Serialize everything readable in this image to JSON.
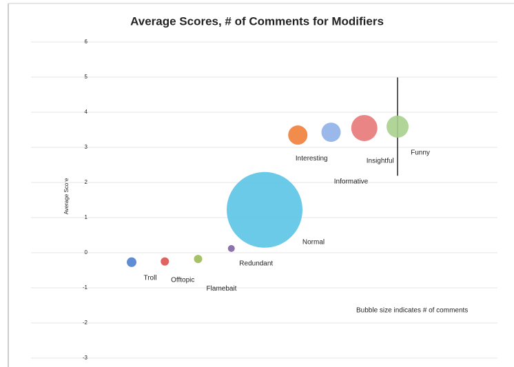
{
  "chart_data": {
    "type": "bubble",
    "title": "Average Scores, # of Comments for Modifiers",
    "y_label": "Average Score",
    "annotation": "Bubble size indicates # of comments",
    "categories": [
      "Troll",
      "Offtopic",
      "Flamebait",
      "Redundant",
      "Normal",
      "Interesting",
      "Informative",
      "Insightful",
      "Funny"
    ],
    "values": [
      -0.27,
      -0.25,
      -0.18,
      0.12,
      1.22,
      3.35,
      3.43,
      3.55,
      3.59
    ],
    "sizes": [
      49,
      36,
      36,
      25,
      3025,
      196,
      196,
      361,
      256
    ],
    "errors": [
      null,
      null,
      null,
      null,
      null,
      null,
      null,
      null,
      1.4
    ],
    "colors": [
      "#4f7fcf",
      "#d9534f",
      "#9bbb59",
      "#8064a2",
      "#5bc4e6",
      "#f0803a",
      "#8fb0e8",
      "#e87878",
      "#a8d08d"
    ],
    "ylim": [
      -3,
      6
    ],
    "yticks": [
      6,
      5,
      4,
      3,
      2,
      1,
      0,
      -1,
      -2,
      -3
    ],
    "grid": true
  }
}
